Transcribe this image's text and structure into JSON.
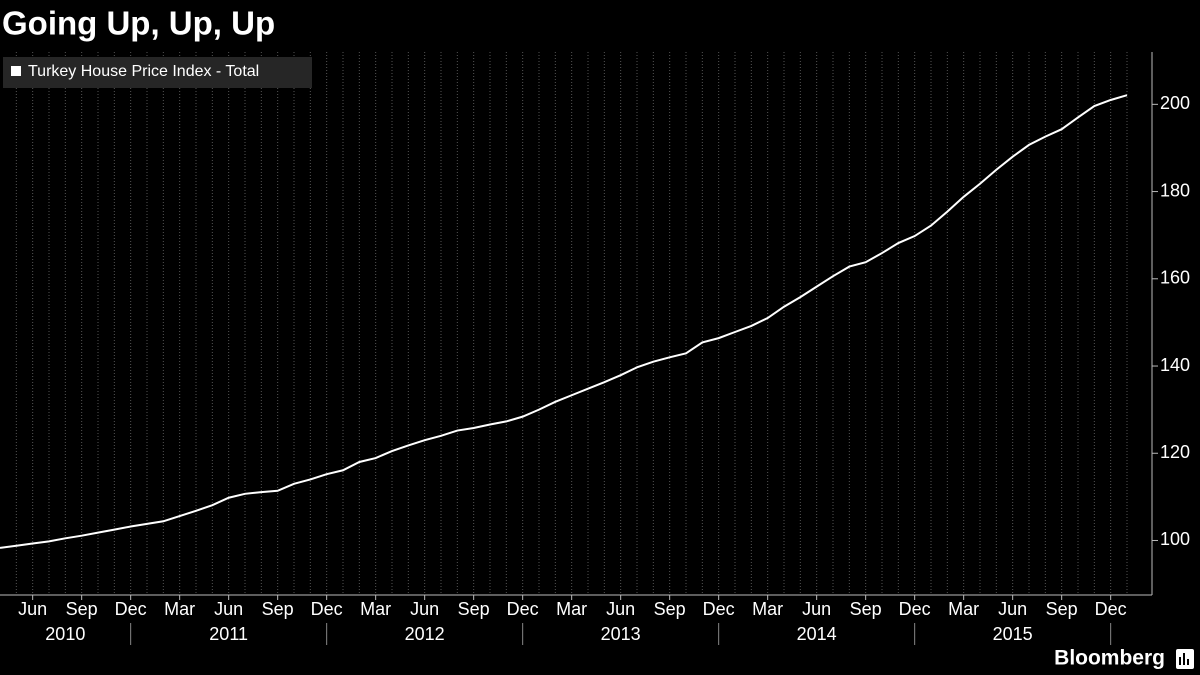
{
  "chart_data": {
    "type": "line",
    "title": "Going Up, Up, Up",
    "source": "Bloomberg",
    "categories": [
      "2010-04",
      "2010-05",
      "2010-06",
      "2010-07",
      "2010-08",
      "2010-09",
      "2010-10",
      "2010-11",
      "2010-12",
      "2011-01",
      "2011-02",
      "2011-03",
      "2011-04",
      "2011-05",
      "2011-06",
      "2011-07",
      "2011-08",
      "2011-09",
      "2011-10",
      "2011-11",
      "2011-12",
      "2012-01",
      "2012-02",
      "2012-03",
      "2012-04",
      "2012-05",
      "2012-06",
      "2012-07",
      "2012-08",
      "2012-09",
      "2012-10",
      "2012-11",
      "2012-12",
      "2013-01",
      "2013-02",
      "2013-03",
      "2013-04",
      "2013-05",
      "2013-06",
      "2013-07",
      "2013-08",
      "2013-09",
      "2013-10",
      "2013-11",
      "2013-12",
      "2014-01",
      "2014-02",
      "2014-03",
      "2014-04",
      "2014-05",
      "2014-06",
      "2014-07",
      "2014-08",
      "2014-09",
      "2014-10",
      "2014-11",
      "2014-12",
      "2015-01",
      "2015-02",
      "2015-03",
      "2015-04",
      "2015-05",
      "2015-06",
      "2015-07",
      "2015-08",
      "2015-09",
      "2015-10",
      "2015-11",
      "2015-12",
      "2016-01"
    ],
    "series": [
      {
        "name": "Turkey House Price Index - Total",
        "color": "#ffffff",
        "values": [
          98.3,
          98.8,
          99.3,
          99.8,
          100.5,
          101.1,
          101.8,
          102.5,
          103.2,
          103.8,
          104.4,
          105.6,
          106.8,
          108.1,
          109.8,
          110.7,
          111.1,
          111.4,
          113,
          114,
          115.2,
          116.1,
          118,
          118.9,
          120.5,
          121.8,
          123,
          124,
          125.2,
          125.8,
          126.6,
          127.3,
          128.4,
          130,
          131.8,
          133.3,
          134.8,
          136.3,
          137.9,
          139.7,
          141,
          142,
          142.9,
          145.4,
          146.4,
          147.8,
          149.2,
          151,
          153.6,
          155.8,
          158.2,
          160.6,
          162.8,
          163.8,
          165.9,
          168.2,
          169.8,
          172.2,
          175.4,
          178.8,
          181.8,
          185,
          188,
          190.7,
          192.6,
          194.3,
          197,
          199.6,
          201,
          202.1
        ]
      }
    ],
    "xticks": [
      {
        "value": "2010-06",
        "label": "Jun"
      },
      {
        "value": "2010-09",
        "label": "Sep"
      },
      {
        "value": "2010-12",
        "label": "Dec"
      },
      {
        "value": "2011-03",
        "label": "Mar"
      },
      {
        "value": "2011-06",
        "label": "Jun"
      },
      {
        "value": "2011-09",
        "label": "Sep"
      },
      {
        "value": "2011-12",
        "label": "Dec"
      },
      {
        "value": "2012-03",
        "label": "Mar"
      },
      {
        "value": "2012-06",
        "label": "Jun"
      },
      {
        "value": "2012-09",
        "label": "Sep"
      },
      {
        "value": "2012-12",
        "label": "Dec"
      },
      {
        "value": "2013-03",
        "label": "Mar"
      },
      {
        "value": "2013-06",
        "label": "Jun"
      },
      {
        "value": "2013-09",
        "label": "Sep"
      },
      {
        "value": "2013-12",
        "label": "Dec"
      },
      {
        "value": "2014-03",
        "label": "Mar"
      },
      {
        "value": "2014-06",
        "label": "Jun"
      },
      {
        "value": "2014-09",
        "label": "Sep"
      },
      {
        "value": "2014-12",
        "label": "Dec"
      },
      {
        "value": "2015-03",
        "label": "Mar"
      },
      {
        "value": "2015-06",
        "label": "Jun"
      },
      {
        "value": "2015-09",
        "label": "Sep"
      },
      {
        "value": "2015-12",
        "label": "Dec"
      }
    ],
    "year_labels": [
      "2010",
      "2011",
      "2012",
      "2013",
      "2014",
      "2015"
    ],
    "ylim": [
      87.5,
      212
    ],
    "yticks": [
      100,
      120,
      140,
      160,
      180,
      200
    ],
    "y_axis_side": "right",
    "legend": "top-left",
    "grid": true
  }
}
